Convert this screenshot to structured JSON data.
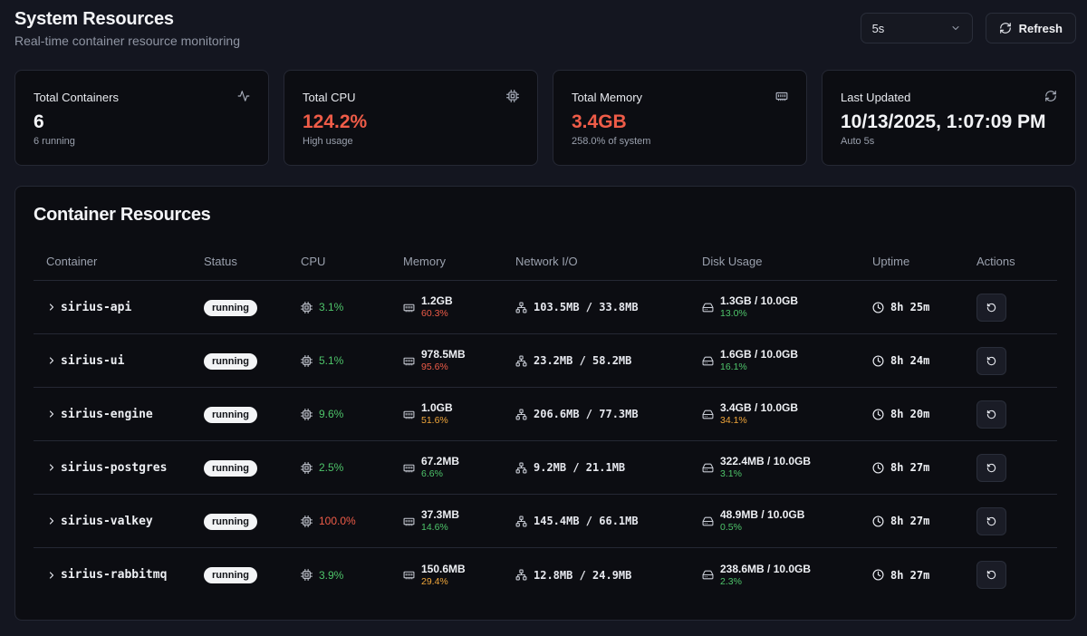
{
  "header": {
    "title": "System Resources",
    "subtitle": "Real-time container resource monitoring",
    "interval_value": "5s",
    "refresh_label": "Refresh"
  },
  "stats": [
    {
      "label": "Total Containers",
      "value": "6",
      "sub": "6 running",
      "icon": "activity-icon",
      "value_color": "default"
    },
    {
      "label": "Total CPU",
      "value": "124.2%",
      "sub": "High usage",
      "icon": "cpu-icon",
      "value_color": "#ef5c48"
    },
    {
      "label": "Total Memory",
      "value": "3.4GB",
      "sub": "258.0% of system",
      "icon": "memory-icon",
      "value_color": "#ef5c48"
    },
    {
      "label": "Last Updated",
      "value": "10/13/2025, 1:07:09 PM",
      "sub": "Auto 5s",
      "icon": "refresh-icon",
      "value_color": "default"
    }
  ],
  "table": {
    "title": "Container Resources",
    "columns": [
      "Container",
      "Status",
      "CPU",
      "Memory",
      "Network I/O",
      "Disk Usage",
      "Uptime",
      "Actions"
    ],
    "rows": [
      {
        "name": "sirius-api",
        "status": "running",
        "cpu": "3.1%",
        "cpu_level": "green",
        "mem": "1.2GB",
        "mem_pct": "60.3%",
        "mem_level": "red",
        "net": "103.5MB / 33.8MB",
        "disk": "1.3GB / 10.0GB",
        "disk_pct": "13.0%",
        "disk_level": "green",
        "uptime": "8h 25m"
      },
      {
        "name": "sirius-ui",
        "status": "running",
        "cpu": "5.1%",
        "cpu_level": "green",
        "mem": "978.5MB",
        "mem_pct": "95.6%",
        "mem_level": "red",
        "net": "23.2MB / 58.2MB",
        "disk": "1.6GB / 10.0GB",
        "disk_pct": "16.1%",
        "disk_level": "green",
        "uptime": "8h 24m"
      },
      {
        "name": "sirius-engine",
        "status": "running",
        "cpu": "9.6%",
        "cpu_level": "green",
        "mem": "1.0GB",
        "mem_pct": "51.6%",
        "mem_level": "orange",
        "net": "206.6MB / 77.3MB",
        "disk": "3.4GB / 10.0GB",
        "disk_pct": "34.1%",
        "disk_level": "orange",
        "uptime": "8h 20m"
      },
      {
        "name": "sirius-postgres",
        "status": "running",
        "cpu": "2.5%",
        "cpu_level": "green",
        "mem": "67.2MB",
        "mem_pct": "6.6%",
        "mem_level": "green",
        "net": "9.2MB / 21.1MB",
        "disk": "322.4MB / 10.0GB",
        "disk_pct": "3.1%",
        "disk_level": "green",
        "uptime": "8h 27m"
      },
      {
        "name": "sirius-valkey",
        "status": "running",
        "cpu": "100.0%",
        "cpu_level": "red",
        "mem": "37.3MB",
        "mem_pct": "14.6%",
        "mem_level": "green",
        "net": "145.4MB / 66.1MB",
        "disk": "48.9MB / 10.0GB",
        "disk_pct": "0.5%",
        "disk_level": "green",
        "uptime": "8h 27m"
      },
      {
        "name": "sirius-rabbitmq",
        "status": "running",
        "cpu": "3.9%",
        "cpu_level": "green",
        "mem": "150.6MB",
        "mem_pct": "29.4%",
        "mem_level": "orange",
        "net": "12.8MB / 24.9MB",
        "disk": "238.6MB / 10.0GB",
        "disk_pct": "2.3%",
        "disk_level": "green",
        "uptime": "8h 27m"
      }
    ]
  }
}
